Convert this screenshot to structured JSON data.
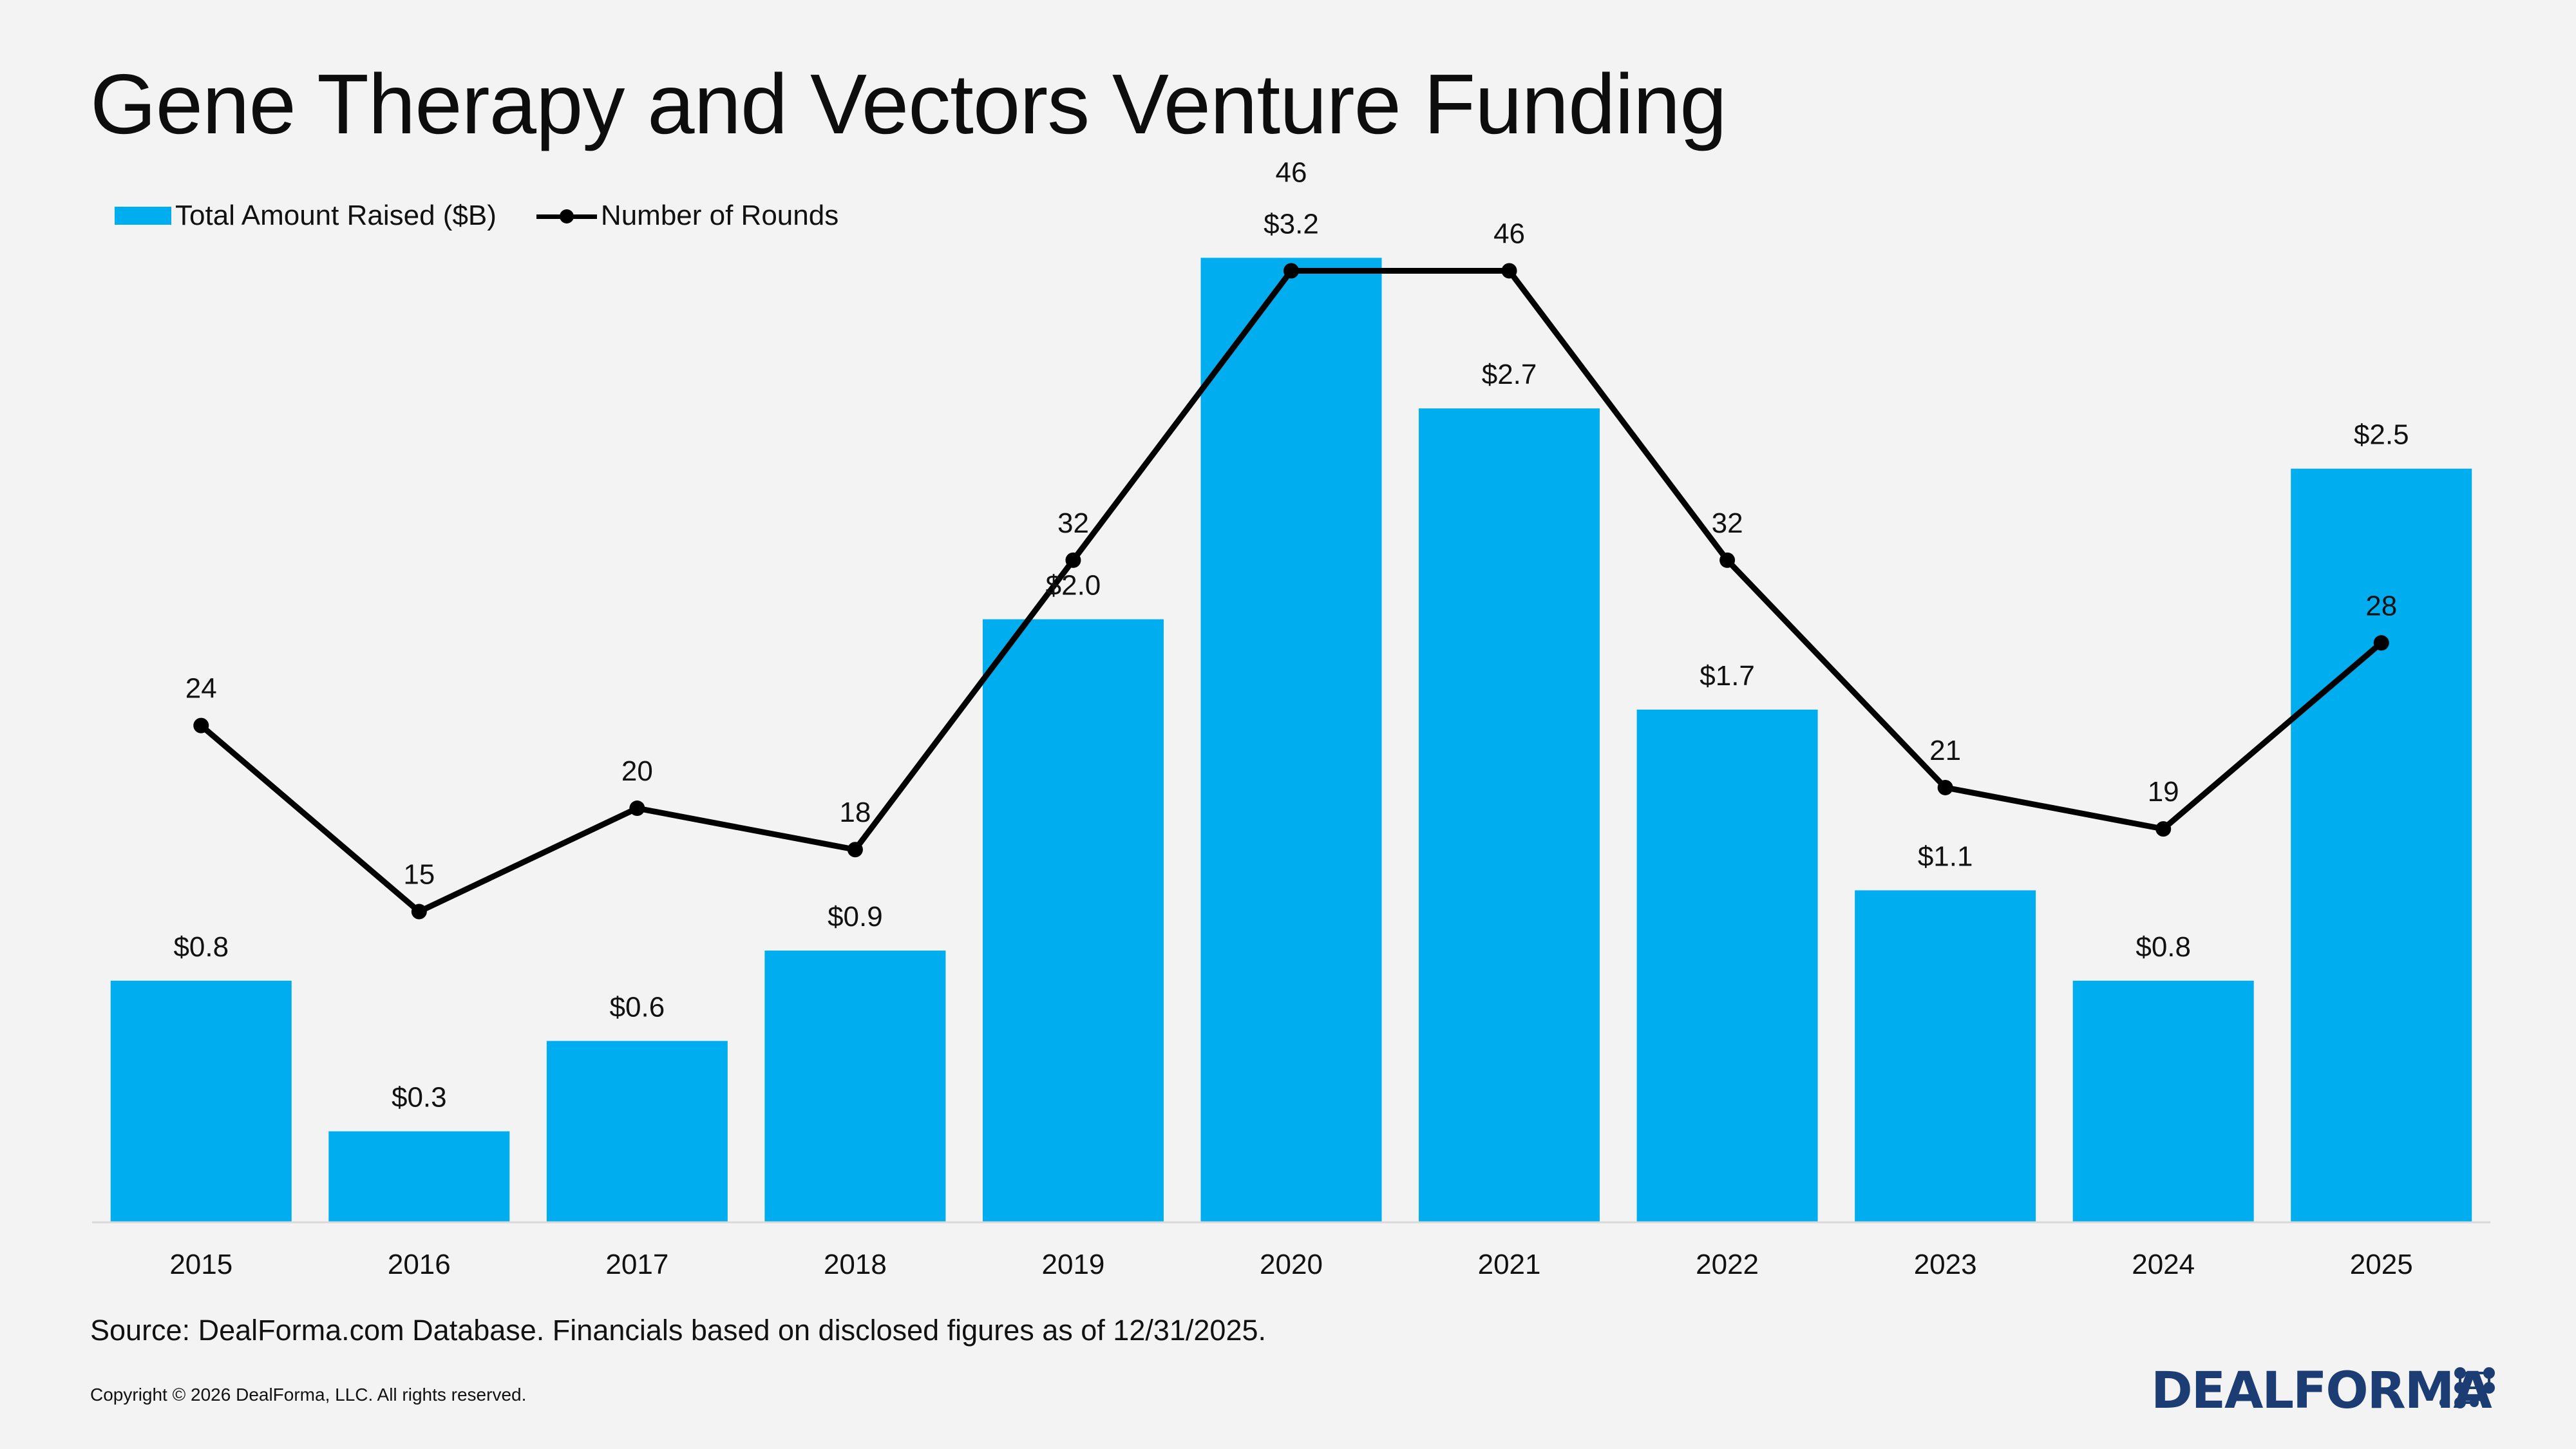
{
  "title": "Gene Therapy and Vectors Venture Funding",
  "legend": {
    "bar_label": "Total Amount Raised ($B)",
    "line_label": "Number of Rounds"
  },
  "source": "Source: DealForma.com Database. Financials based on disclosed figures as of 12/31/2025.",
  "copyright": "Copyright © 2026 DealForma, LLC. All rights reserved.",
  "logo": {
    "text": "DEALFORMA"
  },
  "colors": {
    "bar": "#00aeef",
    "line": "#000000",
    "logo": "#1c3d73",
    "background": "#f3f3f3"
  },
  "chart_data": {
    "type": "bar",
    "categories": [
      "2015",
      "2016",
      "2017",
      "2018",
      "2019",
      "2020",
      "2021",
      "2022",
      "2023",
      "2024",
      "2025"
    ],
    "series": [
      {
        "name": "Total Amount Raised ($B)",
        "type": "bar",
        "values": [
          0.8,
          0.3,
          0.6,
          0.9,
          2.0,
          3.2,
          2.7,
          1.7,
          1.1,
          0.8,
          2.5
        ],
        "labels": [
          "$0.8",
          "$0.3",
          "$0.6",
          "$0.9",
          "$2.0",
          "$3.2",
          "$2.7",
          "$1.7",
          "$1.1",
          "$0.8",
          "$2.5"
        ],
        "axis": "primary"
      },
      {
        "name": "Number of Rounds",
        "type": "line",
        "values": [
          24,
          15,
          20,
          18,
          32,
          46,
          46,
          32,
          21,
          19,
          28
        ],
        "labels": [
          "24",
          "15",
          "20",
          "18",
          "32",
          "46",
          "46",
          "32",
          "21",
          "19",
          "28"
        ],
        "axis": "secondary"
      }
    ],
    "axes": {
      "primary_ylim": [
        0,
        3.5
      ],
      "secondary_ylim": [
        0,
        51
      ]
    },
    "legend_position": "top-left",
    "grid": false
  }
}
